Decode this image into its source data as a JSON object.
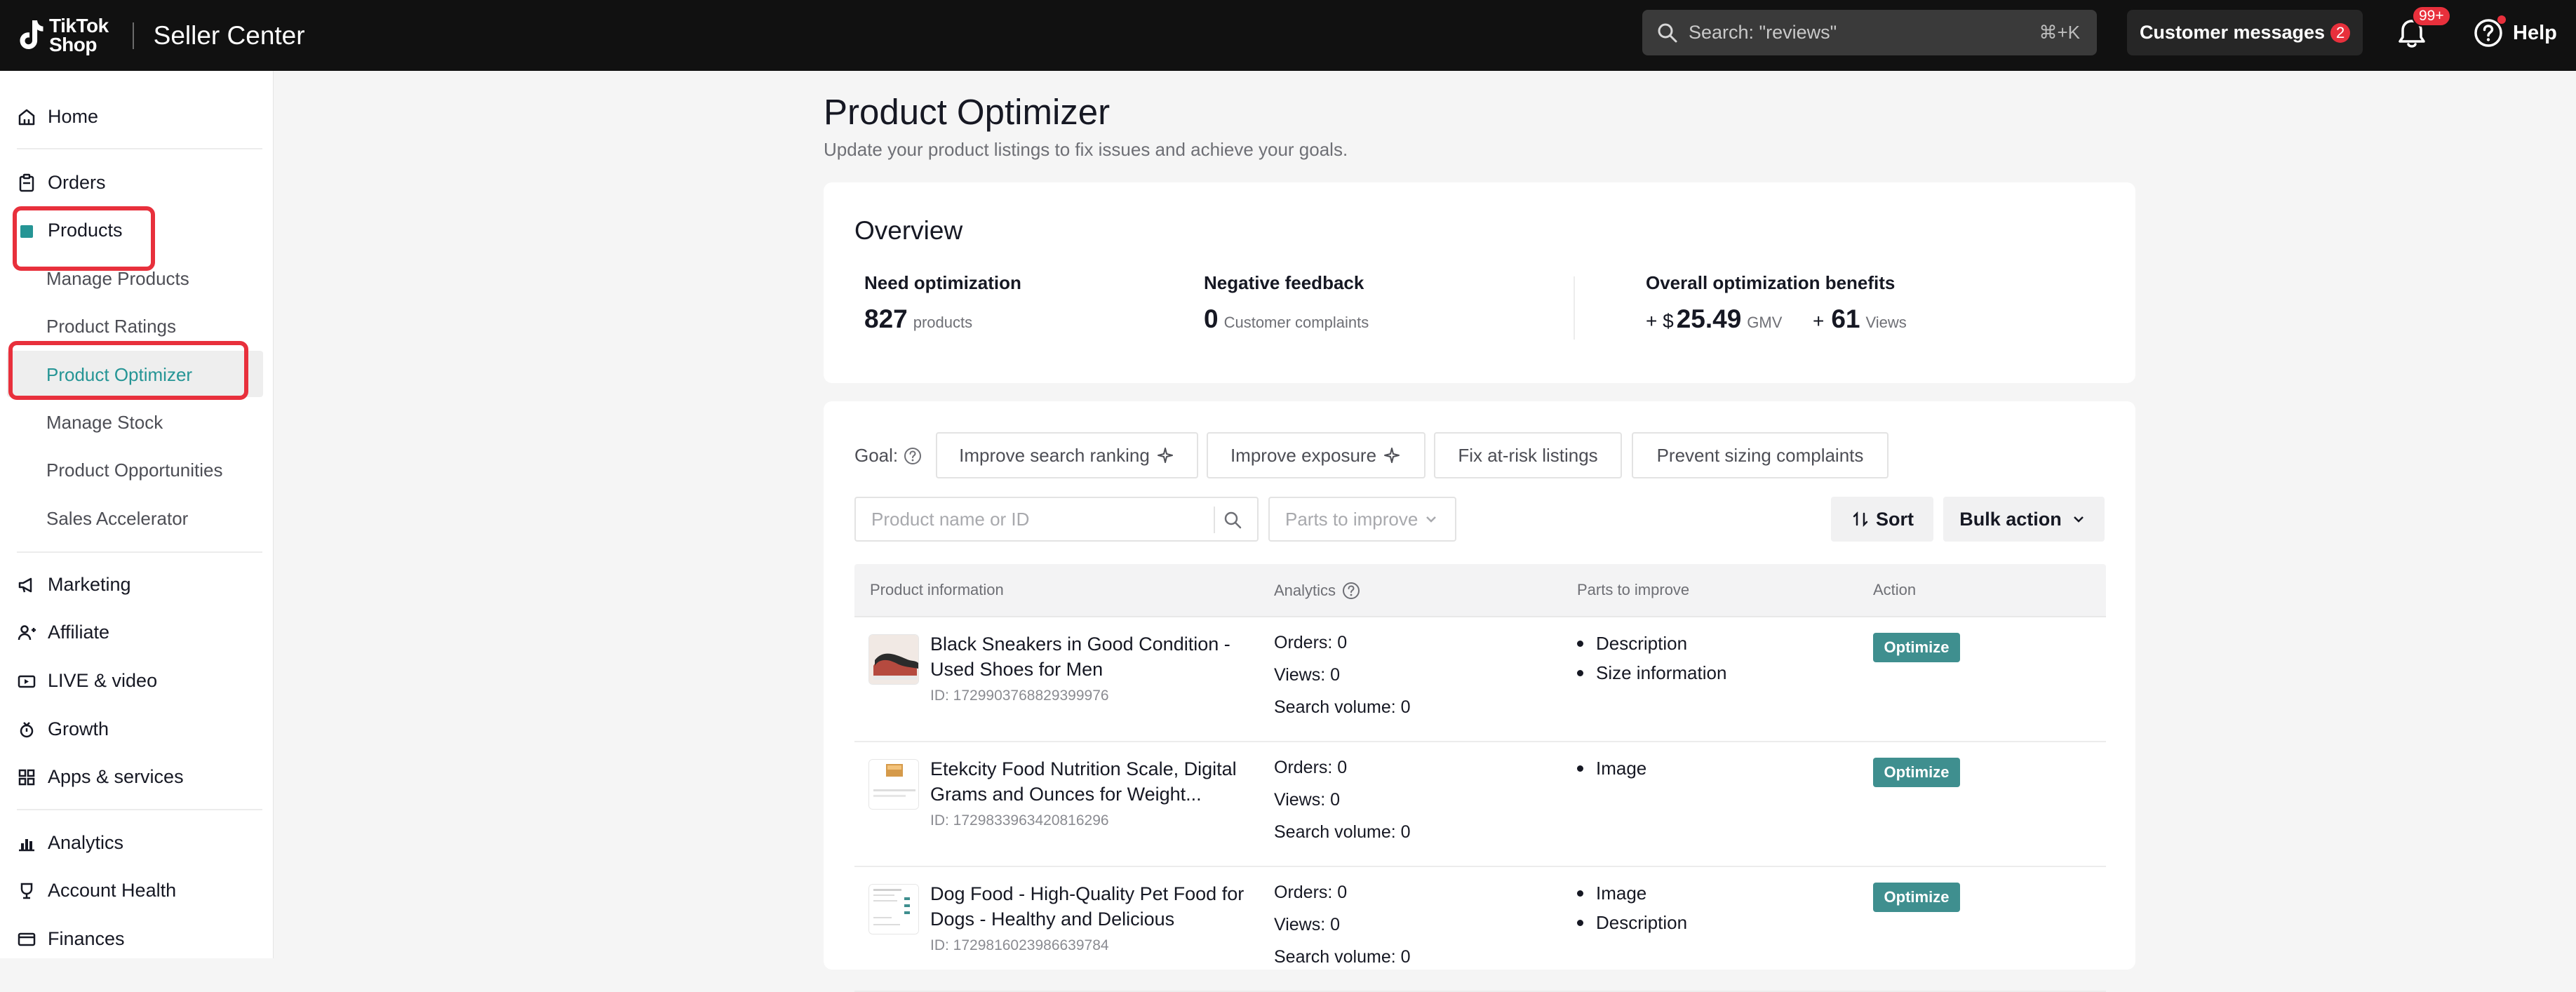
{
  "header": {
    "logo_line1": "TikTok",
    "logo_line2": "Shop",
    "app_title": "Seller Center",
    "search_placeholder": "Search: \"reviews\"",
    "search_shortcut": "⌘+K",
    "customer_messages_label": "Customer messages",
    "customer_messages_count": "2",
    "notifications_badge": "99+",
    "help_label": "Help"
  },
  "sidebar": {
    "home": "Home",
    "orders": "Orders",
    "products": "Products",
    "products_sub": [
      "Manage Products",
      "Product Ratings",
      "Product Optimizer",
      "Manage Stock",
      "Product Opportunities",
      "Sales Accelerator"
    ],
    "marketing": "Marketing",
    "affiliate": "Affiliate",
    "live_video": "LIVE & video",
    "growth": "Growth",
    "apps_services": "Apps & services",
    "analytics": "Analytics",
    "account_health": "Account Health",
    "finances": "Finances"
  },
  "page": {
    "title": "Product Optimizer",
    "subtitle": "Update your product listings to fix issues and achieve your goals."
  },
  "overview": {
    "title": "Overview",
    "need_opt_label": "Need optimization",
    "need_opt_value": "827",
    "need_opt_unit": "products",
    "neg_feedback_label": "Negative feedback",
    "neg_feedback_value": "0",
    "neg_feedback_unit": "Customer complaints",
    "benefits_label": "Overall optimization benefits",
    "gmv_prefix": "+ $",
    "gmv_value": "25.49",
    "gmv_unit": "GMV",
    "views_prefix": "+",
    "views_value": "61",
    "views_unit": "Views"
  },
  "filters": {
    "goal_label": "Goal:",
    "goals": [
      "Improve search ranking",
      "Improve exposure",
      "Fix at-risk listings",
      "Prevent sizing complaints"
    ],
    "search_placeholder": "Product name or ID",
    "parts_placeholder": "Parts to improve",
    "sort_label": "Sort",
    "bulk_label": "Bulk action"
  },
  "table": {
    "columns": [
      "Product information",
      "Analytics",
      "Parts to improve",
      "Action"
    ],
    "rows": [
      {
        "name": "Black Sneakers in Good Condition - Used Shoes for Men",
        "id": "ID: 1729903768829399976",
        "orders": "Orders: 0",
        "views": "Views: 0",
        "search_volume": "Search volume: 0",
        "parts": [
          "Description",
          "Size information"
        ],
        "action": "Optimize"
      },
      {
        "name": "Etekcity Food Nutrition Scale, Digital Grams and Ounces for Weight...",
        "id": "ID: 1729833963420816296",
        "orders": "Orders: 0",
        "views": "Views: 0",
        "search_volume": "Search volume: 0",
        "parts": [
          "Image"
        ],
        "action": "Optimize"
      },
      {
        "name": "Dog Food - High-Quality Pet Food for Dogs - Healthy and Delicious",
        "id": "ID: 1729816023986639784",
        "orders": "Orders: 0",
        "views": "Views: 0",
        "search_volume": "Search volume: 0",
        "parts": [
          "Image",
          "Description"
        ],
        "action": "Optimize"
      }
    ]
  },
  "colors": {
    "accent": "#259595",
    "optimize_button": "#3f8f8f",
    "badge": "#e8303c",
    "highlight_box": "#e8303c",
    "topbar": "#111111"
  },
  "icons": [
    "tiktok-logo",
    "search-icon",
    "bell-icon",
    "help-icon",
    "home-icon",
    "orders-icon",
    "products-icon",
    "marketing-icon",
    "affiliate-icon",
    "live-icon",
    "growth-icon",
    "apps-icon",
    "analytics-icon",
    "account-health-icon",
    "finances-icon",
    "question-icon",
    "sparkle-icon",
    "chevron-down-icon",
    "sort-icon"
  ]
}
